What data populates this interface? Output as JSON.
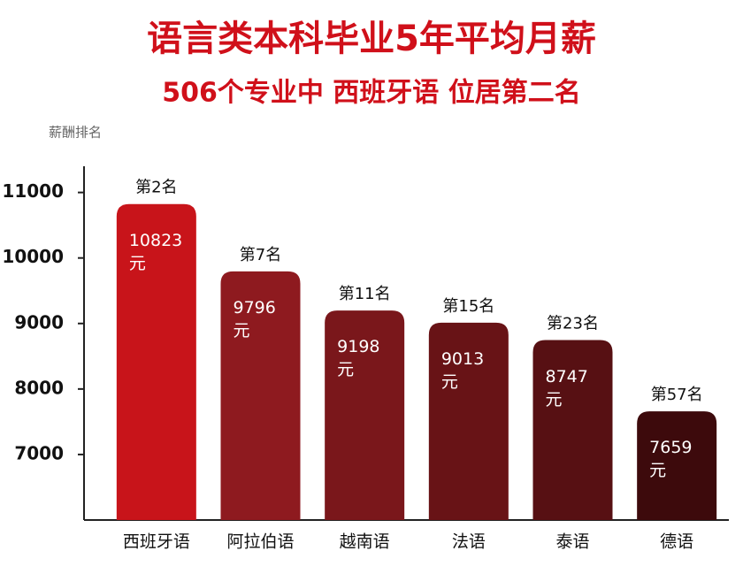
{
  "chart_data": {
    "type": "bar",
    "title": "语言类本科毕业5年平均月薪",
    "subtitle": "506个专业中  西班牙语  位居第二名",
    "y_label": "薪酬排名",
    "categories": [
      "西班牙语",
      "阿拉伯语",
      "越南语",
      "法语",
      "泰语",
      "德语"
    ],
    "values": [
      10823,
      9796,
      9198,
      9013,
      8747,
      7659
    ],
    "value_labels": [
      "10823元",
      "9796元",
      "9198元",
      "9013元",
      "8747元",
      "7659元"
    ],
    "annotations": [
      "第2名",
      "第7名",
      "第11名",
      "第15名",
      "第23名",
      "第57名"
    ],
    "colors": [
      "#c8141a",
      "#8e1a1f",
      "#7a171b",
      "#681316",
      "#571013",
      "#3d0a0c"
    ],
    "ylim": [
      6000,
      11400
    ],
    "yticks": [
      7000,
      8000,
      9000,
      10000,
      11000
    ],
    "grid": false
  }
}
